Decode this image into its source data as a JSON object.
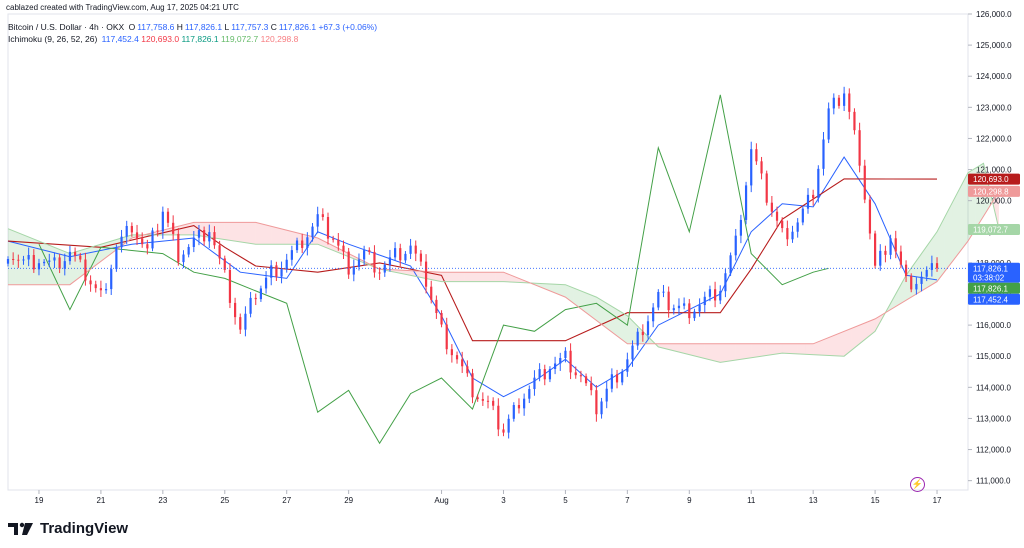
{
  "header": {
    "attribution": "cablazed created with TradingView.com, Aug 17, 2025 04:21 UTC",
    "symbol": "Bitcoin / U.S. Dollar · 4h · OKX",
    "ohlc": {
      "o_label": "O",
      "o": "117,758.6",
      "h_label": "H",
      "h": "117,826.1",
      "l_label": "L",
      "l": "117,757.3",
      "c_label": "C",
      "c": "117,826.1",
      "change": "+67.3 (+0.06%)"
    },
    "indicator_label": "Ichimoku (9, 26, 52, 26)",
    "indicator_values": [
      "117,452.4",
      "120,693.0",
      "117,826.1",
      "119,072.7",
      "120,298.8"
    ]
  },
  "footer": {
    "brand": "TradingView"
  },
  "colors": {
    "up": "#2962ff",
    "down": "#f23645",
    "conversion": "#2962ff",
    "base": "#b71c1c",
    "lagging": "#43a047",
    "span_a": "#a5d6a7",
    "span_b": "#ef9a9a"
  },
  "chart_data": {
    "type": "candlestick",
    "timeframe": "4h",
    "ylim": [
      110700,
      126000
    ],
    "y_ticks": [
      111000,
      112000,
      113000,
      114000,
      115000,
      116000,
      117000,
      118000,
      119000,
      120000,
      121000,
      122000,
      123000,
      124000,
      125000,
      126000
    ],
    "y_tick_labels": [
      "111,000.0",
      "112,000.0",
      "113,000.0",
      "114,000.0",
      "115,000.0",
      "116,000.0",
      "117,000.0",
      "118,000.0",
      "119,000.0",
      "120,000.0",
      "121,000.0",
      "122,000.0",
      "123,000.0",
      "124,000.0",
      "125,000.0",
      "126,000.0"
    ],
    "x_range": [
      "Jul 18",
      "Aug 18"
    ],
    "x_ticks": [
      {
        "date": "Jul 19",
        "label": "19"
      },
      {
        "date": "Jul 21",
        "label": "21"
      },
      {
        "date": "Jul 23",
        "label": "23"
      },
      {
        "date": "Jul 25",
        "label": "25"
      },
      {
        "date": "Jul 27",
        "label": "27"
      },
      {
        "date": "Jul 29",
        "label": "29"
      },
      {
        "date": "Aug 1",
        "label": "Aug"
      },
      {
        "date": "Aug 3",
        "label": "3"
      },
      {
        "date": "Aug 5",
        "label": "5"
      },
      {
        "date": "Aug 7",
        "label": "7"
      },
      {
        "date": "Aug 9",
        "label": "9"
      },
      {
        "date": "Aug 11",
        "label": "11"
      },
      {
        "date": "Aug 13",
        "label": "13"
      },
      {
        "date": "Aug 15",
        "label": "15"
      },
      {
        "date": "Aug 17",
        "label": "17"
      }
    ],
    "price_tags": [
      {
        "value": 120693.0,
        "label": "120,693.0",
        "color": "#b71c1c"
      },
      {
        "value": 120298.8,
        "label": "120,298.8",
        "color": "#ef9a9a"
      },
      {
        "value": 119072.7,
        "label": "119,072.7",
        "color": "#a5d6a7"
      },
      {
        "value": 117826.1,
        "label": "117,826.1",
        "color": "#2962ff",
        "sub": "03:38:02"
      },
      {
        "value": 117826.1,
        "label": "117,826.1",
        "color": "#43a047"
      },
      {
        "value": 117452.4,
        "label": "117,452.4",
        "color": "#2962ff"
      }
    ],
    "close_path": [
      [
        "Jul 18 00:00",
        118400
      ],
      [
        "Jul 18 12:00",
        118000
      ],
      [
        "Jul 19 00:00",
        118100
      ],
      [
        "Jul 19 12:00",
        117900
      ],
      [
        "Jul 20 00:00",
        118300
      ],
      [
        "Jul 20 12:00",
        117600
      ],
      [
        "Jul 21 00:00",
        116900
      ],
      [
        "Jul 21 12:00",
        118500
      ],
      [
        "Jul 22 00:00",
        119200
      ],
      [
        "Jul 22 12:00",
        118300
      ],
      [
        "Jul 23 00:00",
        119700
      ],
      [
        "Jul 23 12:00",
        118300
      ],
      [
        "Jul 24 00:00",
        118700
      ],
      [
        "Jul 24 12:00",
        119100
      ],
      [
        "Jul 25 00:00",
        117500
      ],
      [
        "Jul 25 12:00",
        115800
      ],
      [
        "Jul 26 00:00",
        117000
      ],
      [
        "Jul 26 12:00",
        117700
      ],
      [
        "Jul 27 00:00",
        118100
      ],
      [
        "Jul 27 12:00",
        118700
      ],
      [
        "Jul 28 00:00",
        119400
      ],
      [
        "Jul 28 12:00",
        118800
      ],
      [
        "Jul 29 00:00",
        117900
      ],
      [
        "Jul 29 12:00",
        118300
      ],
      [
        "Jul 30 00:00",
        117800
      ],
      [
        "Jul 30 12:00",
        118200
      ],
      [
        "Jul 31 00:00",
        118500
      ],
      [
        "Jul 31 12:00",
        117400
      ],
      [
        "Aug 1 00:00",
        115800
      ],
      [
        "Aug 1 12:00",
        114900
      ],
      [
        "Aug 2 00:00",
        113900
      ],
      [
        "Aug 2 12:00",
        113400
      ],
      [
        "Aug 3 00:00",
        112600
      ],
      [
        "Aug 3 12:00",
        113600
      ],
      [
        "Aug 4 00:00",
        114200
      ],
      [
        "Aug 4 12:00",
        114700
      ],
      [
        "Aug 5 00:00",
        114900
      ],
      [
        "Aug 5 12:00",
        114300
      ],
      [
        "Aug 6 00:00",
        113300
      ],
      [
        "Aug 6 12:00",
        114200
      ],
      [
        "Aug 7 00:00",
        114900
      ],
      [
        "Aug 7 12:00",
        115900
      ],
      [
        "Aug 8 00:00",
        116900
      ],
      [
        "Aug 8 12:00",
        116600
      ],
      [
        "Aug 9 00:00",
        116500
      ],
      [
        "Aug 9 12:00",
        116800
      ],
      [
        "Aug 10 00:00",
        117200
      ],
      [
        "Aug 10 12:00",
        118600
      ],
      [
        "Aug 11 00:00",
        121600
      ],
      [
        "Aug 11 12:00",
        120100
      ],
      [
        "Aug 12 00:00",
        118900
      ],
      [
        "Aug 12 12:00",
        119300
      ],
      [
        "Aug 13 00:00",
        120300
      ],
      [
        "Aug 13 12:00",
        122800
      ],
      [
        "Aug 14 00:00",
        123500
      ],
      [
        "Aug 14 12:00",
        121400
      ],
      [
        "Aug 15 00:00",
        117800
      ],
      [
        "Aug 15 12:00",
        118900
      ],
      [
        "Aug 16 00:00",
        117300
      ],
      [
        "Aug 16 12:00",
        117500
      ],
      [
        "Aug 17 00:00",
        117826.1
      ]
    ],
    "series": [
      {
        "name": "Conversion Line",
        "values": [
          [
            "Jul 18",
            118700
          ],
          [
            "Jul 20",
            118200
          ],
          [
            "Jul 22",
            118600
          ],
          [
            "Jul 24",
            118800
          ],
          [
            "Jul 25 12:00",
            117700
          ],
          [
            "Jul 27",
            117500
          ],
          [
            "Jul 28",
            119000
          ],
          [
            "Jul 29",
            118600
          ],
          [
            "Jul 31",
            117900
          ],
          [
            "Aug 1",
            116300
          ],
          [
            "Aug 2",
            114300
          ],
          [
            "Aug 3",
            113700
          ],
          [
            "Aug 4",
            114200
          ],
          [
            "Aug 5",
            114900
          ],
          [
            "Aug 6",
            114000
          ],
          [
            "Aug 7",
            114600
          ],
          [
            "Aug 8",
            116000
          ],
          [
            "Aug 9",
            116500
          ],
          [
            "Aug 10",
            117000
          ],
          [
            "Aug 11",
            119000
          ],
          [
            "Aug 12",
            119900
          ],
          [
            "Aug 13",
            119800
          ],
          [
            "Aug 14",
            121400
          ],
          [
            "Aug 15",
            119900
          ],
          [
            "Aug 16",
            117600
          ],
          [
            "Aug 17",
            117452.4
          ]
        ]
      },
      {
        "name": "Base Line",
        "values": [
          [
            "Jul 18",
            118700
          ],
          [
            "Jul 21",
            118500
          ],
          [
            "Jul 24",
            119200
          ],
          [
            "Jul 25",
            118500
          ],
          [
            "Jul 26",
            117900
          ],
          [
            "Jul 28",
            117700
          ],
          [
            "Jul 30",
            118000
          ],
          [
            "Aug 1",
            117600
          ],
          [
            "Aug 2",
            115500
          ],
          [
            "Aug 5",
            115500
          ],
          [
            "Aug 7",
            116400
          ],
          [
            "Aug 9",
            116400
          ],
          [
            "Aug 10",
            116400
          ],
          [
            "Aug 11",
            117800
          ],
          [
            "Aug 12",
            119400
          ],
          [
            "Aug 14",
            120700
          ],
          [
            "Aug 17",
            120693.0
          ]
        ]
      },
      {
        "name": "Lagging Span",
        "values": [
          [
            "Jul 19",
            118600
          ],
          [
            "Jul 20",
            116500
          ],
          [
            "Jul 21",
            118500
          ],
          [
            "Jul 23",
            118300
          ],
          [
            "Jul 24",
            117700
          ],
          [
            "Jul 25",
            117500
          ],
          [
            "Jul 26",
            117100
          ],
          [
            "Jul 27",
            116700
          ],
          [
            "Jul 28",
            113200
          ],
          [
            "Jul 29",
            113900
          ],
          [
            "Jul 30",
            112200
          ],
          [
            "Jul 31",
            113800
          ],
          [
            "Aug 1",
            114300
          ],
          [
            "Aug 2",
            113300
          ],
          [
            "Aug 3",
            116000
          ],
          [
            "Aug 4",
            115800
          ],
          [
            "Aug 5",
            116500
          ],
          [
            "Aug 6",
            116700
          ],
          [
            "Aug 7",
            116000
          ],
          [
            "Aug 8",
            121700
          ],
          [
            "Aug 9",
            119000
          ],
          [
            "Aug 10",
            123400
          ],
          [
            "Aug 11",
            118300
          ],
          [
            "Aug 12",
            117300
          ],
          [
            "Aug 13",
            117700
          ],
          [
            "Aug 13 12:00",
            117826.1
          ]
        ]
      },
      {
        "name": "Leading Span A",
        "values": [
          [
            "Jul 18",
            119100
          ],
          [
            "Jul 20",
            118300
          ],
          [
            "Jul 22",
            118900
          ],
          [
            "Jul 24",
            118900
          ],
          [
            "Jul 26",
            118600
          ],
          [
            "Jul 28",
            118600
          ],
          [
            "Jul 30",
            117800
          ],
          [
            "Aug 1",
            117400
          ],
          [
            "Aug 3",
            117400
          ],
          [
            "Aug 5",
            117300
          ],
          [
            "Aug 6",
            116900
          ],
          [
            "Aug 7",
            116300
          ],
          [
            "Aug 8",
            115300
          ],
          [
            "Aug 10",
            114800
          ],
          [
            "Aug 12",
            115100
          ],
          [
            "Aug 14",
            115000
          ],
          [
            "Aug 15",
            115800
          ],
          [
            "Aug 16",
            117600
          ],
          [
            "Aug 17",
            119000
          ],
          [
            "Aug 18",
            120900
          ],
          [
            "Aug 18 12:00",
            121200
          ],
          [
            "Aug 19",
            119072.7
          ]
        ]
      },
      {
        "name": "Leading Span B",
        "values": [
          [
            "Jul 18",
            117300
          ],
          [
            "Jul 20",
            117300
          ],
          [
            "Jul 22",
            118800
          ],
          [
            "Jul 24",
            119300
          ],
          [
            "Jul 26",
            119300
          ],
          [
            "Jul 28",
            118800
          ],
          [
            "Jul 30",
            117800
          ],
          [
            "Aug 1",
            117700
          ],
          [
            "Aug 3",
            117700
          ],
          [
            "Aug 5",
            116900
          ],
          [
            "Aug 7",
            115400
          ],
          [
            "Aug 9",
            115400
          ],
          [
            "Aug 11",
            115400
          ],
          [
            "Aug 13",
            115400
          ],
          [
            "Aug 15",
            116200
          ],
          [
            "Aug 17",
            117400
          ],
          [
            "Aug 18",
            118700
          ],
          [
            "Aug 19",
            120298.8
          ]
        ]
      }
    ]
  }
}
